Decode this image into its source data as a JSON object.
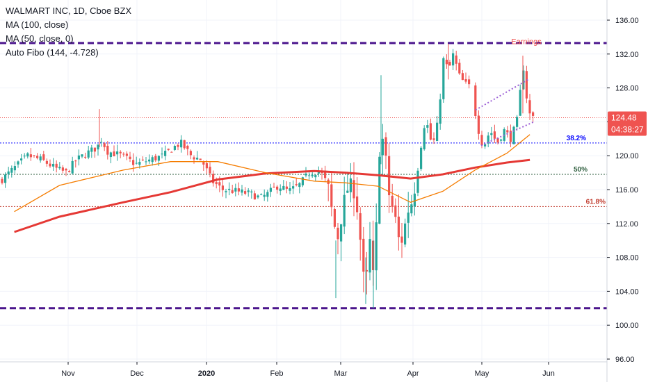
{
  "legend": {
    "title": "WALMART INC, 1D, Cboe BZX",
    "ma100": "MA (100, close)",
    "ma50": "MA (50, close, 0)",
    "fibo": "Auto Fibo (144, -4.728)"
  },
  "colors": {
    "up": "#26a69a",
    "down": "#ef5350",
    "ma100": "#e53935",
    "ma50": "#f57c00",
    "dashed_level": "#4a148c",
    "price_line": "#ef5350",
    "channel": "#9c5fd6",
    "fib_382": "#0000ff",
    "fib_50": "#2e5e3e",
    "fib_618": "#c0392b"
  },
  "annotations": {
    "earnings": "Earnings"
  },
  "price_badge": {
    "price": "124.48",
    "countdown": "04:38:27"
  },
  "chart_data": {
    "type": "candlestick",
    "title": "WALMART INC, 1D, Cboe BZX",
    "ylim": [
      95.5,
      138.5
    ],
    "y_ticks": [
      "136.00",
      "132.00",
      "128.00",
      "124.00",
      "120.00",
      "116.00",
      "112.00",
      "108.00",
      "104.00",
      "100.00",
      "96.00"
    ],
    "x_ticks": [
      "Nov",
      "Dec",
      "2020",
      "Feb",
      "Mar",
      "Apr",
      "May",
      "Jun"
    ],
    "horizontal_levels": [
      {
        "value": 133.3,
        "style": "thick-dashed"
      },
      {
        "value": 102.0,
        "style": "thick-dashed"
      }
    ],
    "fib_levels": [
      {
        "label": "38.2%",
        "value": 121.5
      },
      {
        "label": "50%",
        "value": 117.8
      },
      {
        "label": "61.8%",
        "value": 114.0
      }
    ],
    "last_price": 124.48,
    "series": [
      {
        "name": "MA (100, close)",
        "points": [
          [
            "Oct 7",
            111.0
          ],
          [
            "Oct 28",
            112.8
          ],
          [
            "Nov 25",
            114.5
          ],
          [
            "Dec 16",
            115.7
          ],
          [
            "Jan 6",
            117.2
          ],
          [
            "Jan 27",
            117.9
          ],
          [
            "Feb 18",
            118.2
          ],
          [
            "Mar 3",
            118.0
          ],
          [
            "Mar 17",
            117.7
          ],
          [
            "Mar 31",
            117.3
          ],
          [
            "Apr 14",
            117.8
          ],
          [
            "Apr 28",
            118.6
          ],
          [
            "May 12",
            119.2
          ],
          [
            "May 22",
            119.5
          ]
        ]
      },
      {
        "name": "MA (50, close, 0)",
        "points": [
          [
            "Oct 7",
            113.4
          ],
          [
            "Oct 28",
            116.5
          ],
          [
            "Nov 25",
            118.3
          ],
          [
            "Dec 16",
            119.3
          ],
          [
            "Jan 6",
            119.3
          ],
          [
            "Jan 27",
            118.0
          ],
          [
            "Feb 18",
            117.0
          ],
          [
            "Mar 3",
            116.8
          ],
          [
            "Mar 17",
            116.4
          ],
          [
            "Mar 31",
            114.5
          ],
          [
            "Apr 14",
            115.8
          ],
          [
            "Apr 28",
            118.3
          ],
          [
            "May 12",
            120.3
          ],
          [
            "May 22",
            122.5
          ]
        ]
      }
    ]
  }
}
